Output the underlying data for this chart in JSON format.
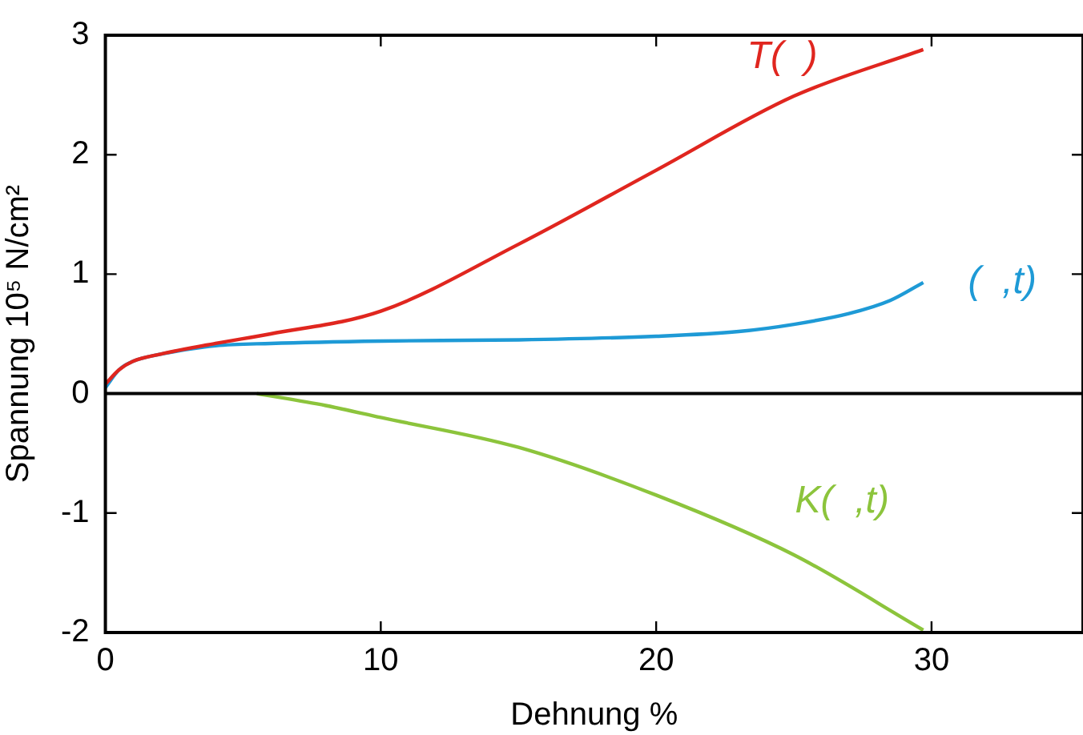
{
  "chart_data": {
    "type": "line",
    "xlabel": "Dehnung %",
    "ylabel": "Spannung 10⁵ N/cm²",
    "xlim": [
      0,
      35.5
    ],
    "ylim": [
      -2,
      3
    ],
    "xticks": [
      0,
      10,
      20,
      30
    ],
    "yticks": [
      -2,
      -1,
      0,
      1,
      2,
      3
    ],
    "grid": false,
    "legend": false,
    "marker": "none",
    "line_style": "solid",
    "ref_lines": [
      {
        "axis": "y",
        "value": 0,
        "color": "#000000"
      }
    ],
    "series": [
      {
        "name": "T(  )",
        "color": "#e0261f",
        "x": [
          0,
          0.5,
          1,
          2,
          4,
          6,
          10,
          15,
          20,
          25,
          29.7
        ],
        "values": [
          0.08,
          0.2,
          0.27,
          0.33,
          0.42,
          0.5,
          0.69,
          1.25,
          1.87,
          2.49,
          2.88
        ]
      },
      {
        "name": "(  ,t)",
        "color": "#1e9ad6",
        "x": [
          0,
          0.5,
          1,
          2,
          4,
          6,
          10,
          15,
          20,
          23,
          25,
          27,
          28.5,
          29.7
        ],
        "values": [
          0.05,
          0.2,
          0.27,
          0.33,
          0.4,
          0.42,
          0.44,
          0.45,
          0.48,
          0.52,
          0.58,
          0.67,
          0.78,
          0.93
        ]
      },
      {
        "name": "K(  ,t)",
        "color": "#8cc43c",
        "x": [
          5.5,
          8,
          10,
          15,
          20,
          25,
          29.7
        ],
        "values": [
          0,
          -0.1,
          -0.2,
          -0.45,
          -0.85,
          -1.35,
          -1.98
        ]
      }
    ]
  }
}
